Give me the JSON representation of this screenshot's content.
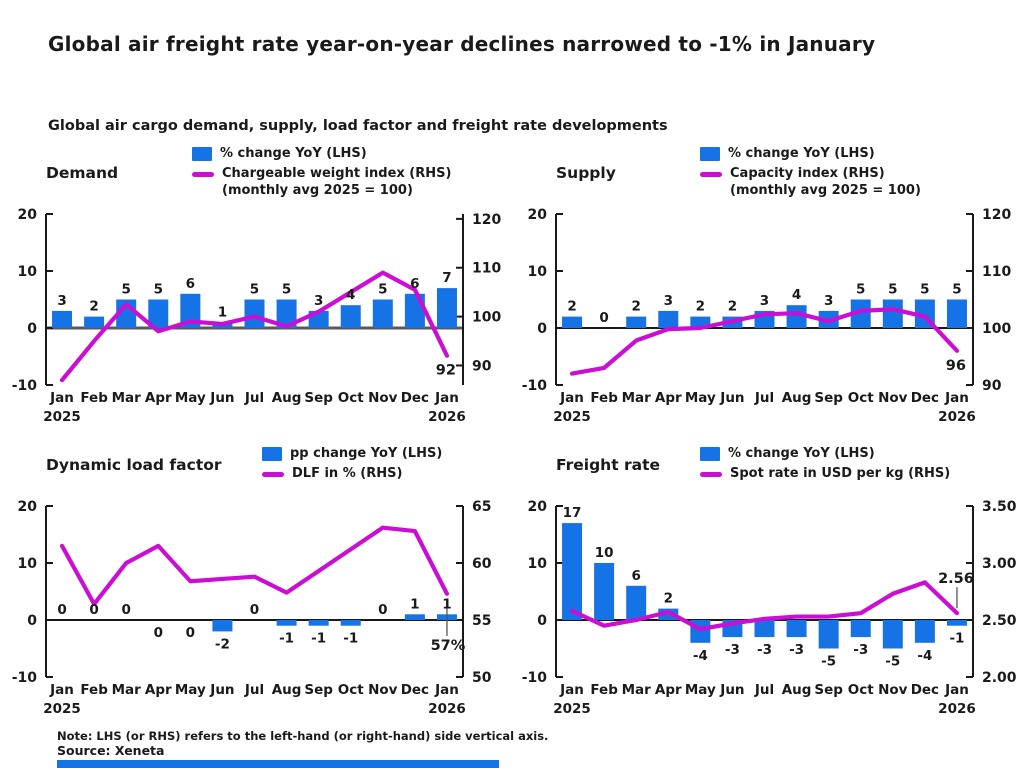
{
  "header": {
    "title": "Global air freight rate year-on-year declines narrowed to -1% in January",
    "subtitle": "Global air cargo demand, supply, load factor and freight rate developments"
  },
  "footer": {
    "note": "Note: LHS (or RHS) refers to the left-hand (or right-hand) side vertical axis.",
    "source": "Source: Xeneta"
  },
  "colors": {
    "bar_blue": "#1673e6",
    "line_magenta": "#cc0dd4",
    "text": "#1a1a1a",
    "demand_zero_line": "#58595b",
    "accent_bar": "#1673e6"
  },
  "chart_data": [
    {
      "id": "demand",
      "type": "bar+line",
      "title": "Demand",
      "legend_bar": "% change YoY (LHS)",
      "legend_line": "Chargeable weight index (RHS)",
      "legend_line2": "(monthly avg 2025 = 100)",
      "categories": [
        "Jan",
        "Feb",
        "Mar",
        "Apr",
        "May",
        "Jun",
        "Jul",
        "Aug",
        "Sep",
        "Oct",
        "Nov",
        "Dec",
        "Jan"
      ],
      "start_year": "2025",
      "end_year": "2026",
      "lhs_ticks": [
        "20",
        "10",
        "0",
        "-10"
      ],
      "lhs_range": [
        -10,
        20
      ],
      "rhs_ticks": [
        "120",
        "110",
        "100",
        "90"
      ],
      "rhs_range": [
        86,
        121
      ],
      "bar_values": [
        3,
        2,
        5,
        5,
        6,
        1,
        5,
        5,
        3,
        4,
        5,
        6,
        7
      ],
      "bar_labels": [
        "3",
        "2",
        "5",
        "5",
        "6",
        "1",
        "5",
        "5",
        "3",
        "4",
        "5",
        "6",
        "7"
      ],
      "bar_label_below": [
        false,
        false,
        false,
        false,
        false,
        false,
        false,
        false,
        false,
        false,
        false,
        false,
        false
      ],
      "line_values": [
        87,
        95,
        102.5,
        97,
        99,
        98.5,
        100,
        98,
        101,
        105,
        109,
        105.5,
        92
      ],
      "end_label": {
        "text": "92",
        "side": "below-left",
        "leader": false
      },
      "zero_line": {
        "color": "#58595b",
        "width": 3
      }
    },
    {
      "id": "supply",
      "type": "bar+line",
      "title": "Supply",
      "legend_bar": "% change YoY (LHS)",
      "legend_line": "Capacity index (RHS)",
      "legend_line2": "(monthly avg 2025 = 100)",
      "categories": [
        "Jan",
        "Feb",
        "Mar",
        "Apr",
        "May",
        "Jun",
        "Jul",
        "Aug",
        "Sep",
        "Oct",
        "Nov",
        "Dec",
        "Jan"
      ],
      "start_year": "2025",
      "end_year": "2026",
      "lhs_ticks": [
        "20",
        "10",
        "0",
        "-10"
      ],
      "lhs_range": [
        -10,
        20
      ],
      "rhs_ticks": [
        "120",
        "110",
        "100",
        "90"
      ],
      "rhs_range": [
        90,
        120
      ],
      "bar_values": [
        2,
        0,
        2,
        3,
        2,
        2,
        3,
        4,
        3,
        5,
        5,
        5,
        5
      ],
      "bar_labels": [
        "2",
        "0",
        "2",
        "3",
        "2",
        "2",
        "3",
        "4",
        "3",
        "5",
        "5",
        "5",
        "5"
      ],
      "bar_label_below": [
        false,
        false,
        false,
        false,
        false,
        false,
        false,
        false,
        false,
        false,
        false,
        false,
        false
      ],
      "line_values": [
        92,
        93,
        97.8,
        99.8,
        100,
        101.2,
        102.4,
        102.6,
        101.2,
        103,
        103.3,
        102,
        96
      ],
      "end_label": {
        "text": "96",
        "side": "below-left",
        "leader": false
      },
      "zero_line": {
        "color": "#1a1a1a",
        "width": 2
      }
    },
    {
      "id": "dlf",
      "type": "bar+line",
      "title": "Dynamic load factor",
      "legend_bar": "pp change YoY (LHS)",
      "legend_line": "DLF in % (RHS)",
      "legend_line2": "",
      "categories": [
        "Jan",
        "Feb",
        "Mar",
        "Apr",
        "May",
        "Jun",
        "Jul",
        "Aug",
        "Sep",
        "Oct",
        "Nov",
        "Dec",
        "Jan"
      ],
      "start_year": "2025",
      "end_year": "2026",
      "lhs_ticks": [
        "20",
        "10",
        "0",
        "-10"
      ],
      "lhs_range": [
        -10,
        20
      ],
      "rhs_ticks": [
        "65",
        "60",
        "55",
        "50"
      ],
      "rhs_range": [
        50,
        65
      ],
      "bar_values": [
        0,
        0,
        0,
        0,
        0,
        -2,
        0,
        -1,
        -1,
        -1,
        0,
        1,
        1
      ],
      "bar_labels": [
        "0",
        "0",
        "0",
        "0",
        "0",
        "-2",
        "0",
        "-1",
        "-1",
        "-1",
        "0",
        "1",
        "1"
      ],
      "bar_label_below": [
        false,
        false,
        false,
        true,
        true,
        true,
        false,
        true,
        true,
        true,
        false,
        false,
        false
      ],
      "line_values": [
        61.5,
        56.4,
        60,
        61.5,
        58.4,
        58.6,
        58.8,
        57.4,
        59.3,
        61.2,
        63.1,
        62.8,
        57.3
      ],
      "end_label": {
        "text": "57%",
        "side": "below",
        "leader": true
      },
      "zero_line": {
        "color": "#1a1a1a",
        "width": 2
      }
    },
    {
      "id": "freight",
      "type": "bar+line",
      "title": "Freight rate",
      "legend_bar": "% change YoY (LHS)",
      "legend_line": "Spot rate in USD per kg (RHS)",
      "legend_line2": "",
      "categories": [
        "Jan",
        "Feb",
        "Mar",
        "Apr",
        "May",
        "Jun",
        "Jul",
        "Aug",
        "Sep",
        "Oct",
        "Nov",
        "Dec",
        "Jan"
      ],
      "start_year": "2025",
      "end_year": "2026",
      "lhs_ticks": [
        "20",
        "10",
        "0",
        "-10"
      ],
      "lhs_range": [
        -10,
        20
      ],
      "rhs_ticks": [
        "3.50",
        "3.00",
        "2.50",
        "2.00"
      ],
      "rhs_range": [
        2.0,
        3.5
      ],
      "bar_values": [
        17,
        10,
        6,
        2,
        -4,
        -3,
        -3,
        -3,
        -5,
        -3,
        -5,
        -4,
        -1
      ],
      "bar_labels": [
        "17",
        "10",
        "6",
        "2",
        "-4",
        "-3",
        "-3",
        "-3",
        "-5",
        "-3",
        "-5",
        "-4",
        "-1"
      ],
      "bar_label_below": [
        false,
        false,
        false,
        false,
        true,
        true,
        true,
        true,
        true,
        true,
        true,
        true,
        true
      ],
      "line_values": [
        2.58,
        2.45,
        2.5,
        2.57,
        2.42,
        2.47,
        2.51,
        2.53,
        2.53,
        2.56,
        2.73,
        2.83,
        2.56
      ],
      "end_label": {
        "text": "2.56",
        "side": "above",
        "leader": true
      },
      "zero_line": {
        "color": "#1a1a1a",
        "width": 2
      }
    }
  ]
}
